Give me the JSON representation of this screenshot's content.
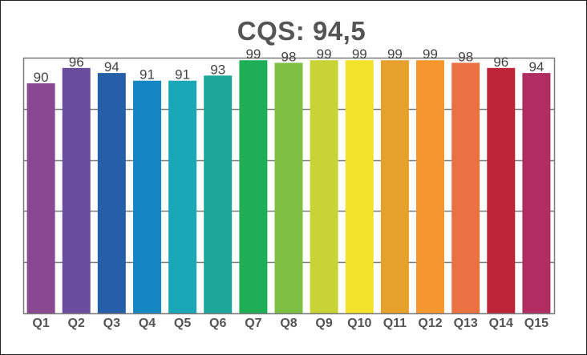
{
  "chart_data": {
    "type": "bar",
    "title": "CQS: 94,5",
    "xlabel": "",
    "ylabel": "",
    "categories": [
      "Q1",
      "Q2",
      "Q3",
      "Q4",
      "Q5",
      "Q6",
      "Q7",
      "Q8",
      "Q9",
      "Q10",
      "Q11",
      "Q12",
      "Q13",
      "Q14",
      "Q15"
    ],
    "values": [
      90,
      96,
      94,
      91,
      91,
      93,
      99,
      98,
      99,
      99,
      99,
      99,
      98,
      96,
      94
    ],
    "ylim": [
      0,
      100
    ],
    "yticks": [
      0,
      20,
      40,
      60,
      80,
      100
    ],
    "grid": true,
    "legend": "none",
    "colors": [
      "#8B4892",
      "#6A4C9E",
      "#255FA8",
      "#1487C2",
      "#19A7B8",
      "#1CA79A",
      "#1EAE55",
      "#7DC043",
      "#C8D435",
      "#F2E22A",
      "#E6A12C",
      "#F5962F",
      "#EA7142",
      "#BE2438",
      "#AF2D61"
    ]
  }
}
